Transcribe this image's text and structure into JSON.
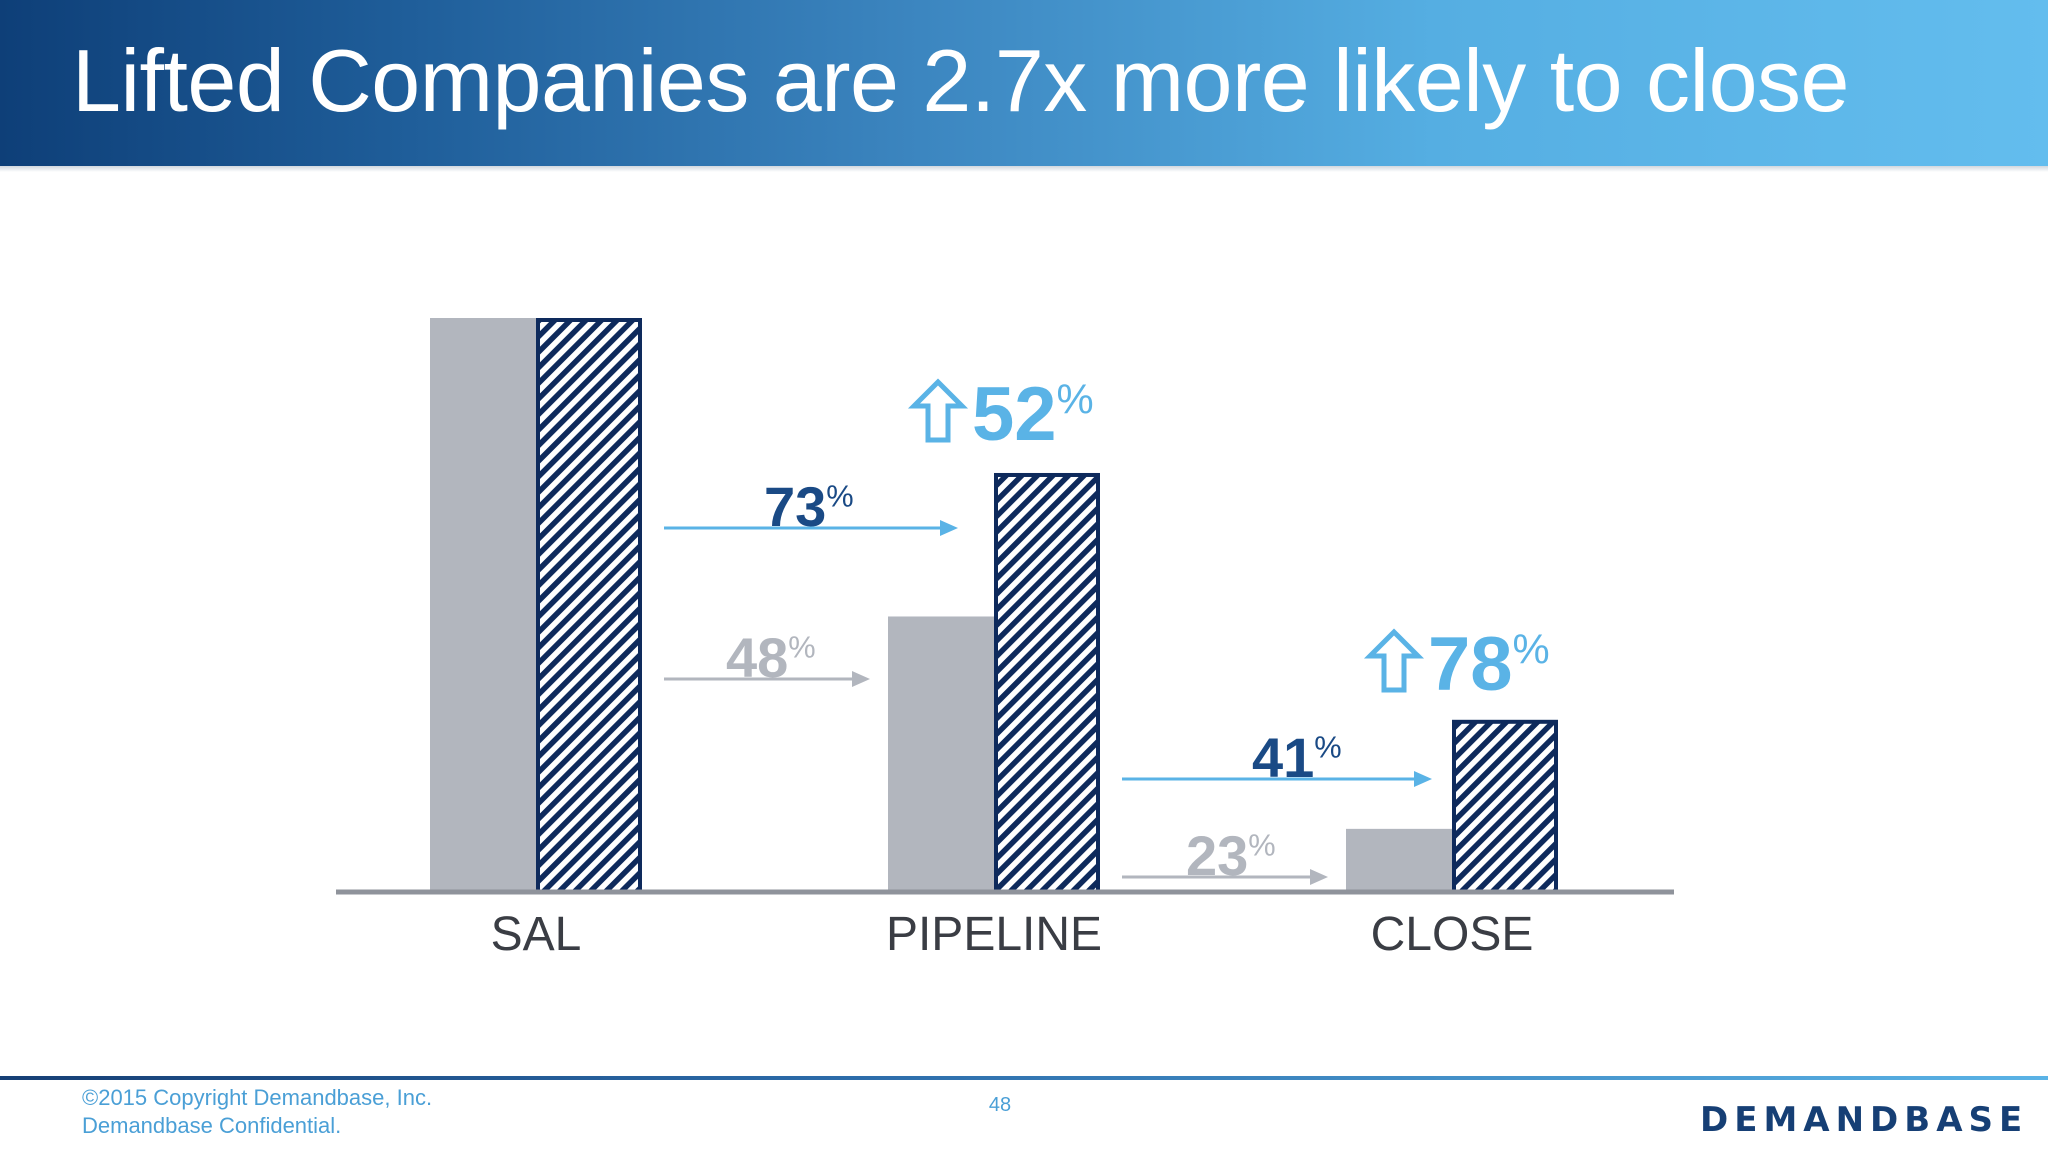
{
  "title": "Lifted Companies are 2.7x more likely to close",
  "footer": {
    "copyright_line1": "©2015 Copyright Demandbase, Inc.",
    "copyright_line2": "Demandbase Confidential.",
    "page_number": "48",
    "logo_text": "DEMANDBASE"
  },
  "colors": {
    "baseline_bar": "#b2b6be",
    "lifted_bar_outline": "#0e2a5c",
    "lifted_conversion": "#1a4a85",
    "baseline_conversion": "#b2b6be",
    "lift_label": "#5ab3e6"
  },
  "chart_data": {
    "type": "bar",
    "categories": [
      "SAL",
      "PIPELINE",
      "CLOSE"
    ],
    "series": [
      {
        "values": [
          100,
          48,
          11
        ]
      },
      {
        "values": [
          100,
          73,
          30
        ]
      }
    ],
    "conversion_rates": [
      {
        "from": "SAL",
        "to": "PIPELINE",
        "lifted": "73",
        "baseline": "48",
        "unit": "%"
      },
      {
        "from": "PIPELINE",
        "to": "CLOSE",
        "lifted": "41",
        "baseline": "23",
        "unit": "%"
      }
    ],
    "lift_labels": [
      {
        "category": "PIPELINE",
        "value": "52",
        "unit": "%"
      },
      {
        "category": "CLOSE",
        "value": "78",
        "unit": "%"
      }
    ],
    "ylim": [
      0,
      100
    ],
    "grid": false,
    "title": "",
    "xlabel": "",
    "ylabel": ""
  }
}
